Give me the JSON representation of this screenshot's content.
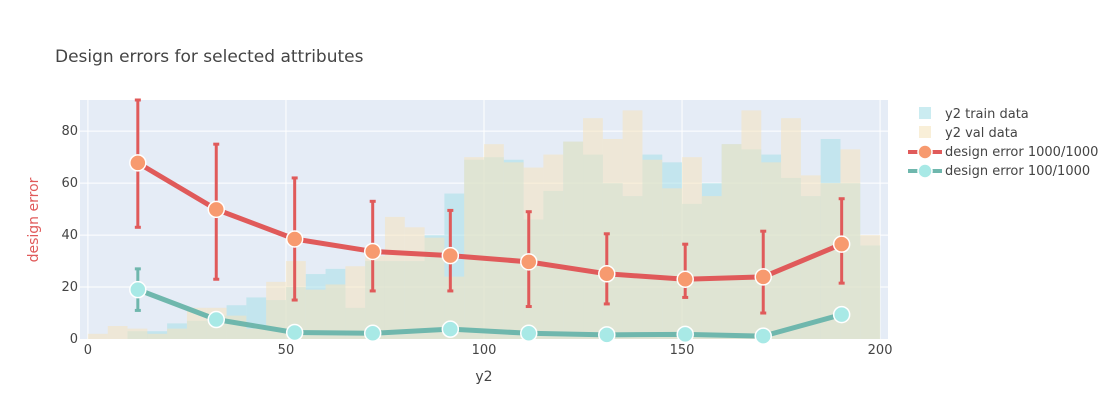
{
  "chart_data": {
    "type": "line",
    "title": "Design errors for selected attributes",
    "xlabel": "y2",
    "ylabel": "design error",
    "xlim": [
      -2,
      202
    ],
    "ylim": [
      0,
      92
    ],
    "x_ticks": [
      0,
      50,
      100,
      150,
      200
    ],
    "y_ticks": [
      0,
      20,
      40,
      60,
      80
    ],
    "grid": true,
    "legend_position": "right",
    "colors": {
      "plot_bg": "#e5ecf6",
      "train_hist": "#a8e0e8",
      "val_hist": "#f5e4be",
      "error_1000": "#e05a5a",
      "error_1000_marker": "#f79a6f",
      "error_100": "#6fb7ad",
      "error_100_marker": "#a8e9e6",
      "ylabel_color": "#e05a5a"
    },
    "histograms": [
      {
        "name": "y2 train data",
        "bin_start": 5,
        "bin_width": 5,
        "values": [
          0,
          3,
          3,
          6,
          7,
          9,
          13,
          16,
          15,
          20,
          25,
          27,
          12,
          30,
          30,
          30,
          40,
          56,
          69,
          70,
          69,
          46,
          57,
          76,
          71,
          60,
          55,
          71,
          68,
          52,
          60,
          75,
          73,
          71,
          62,
          55,
          77,
          60,
          36
        ]
      },
      {
        "name": "y2 val data",
        "bin_start": 0,
        "bin_width": 5,
        "values": [
          2,
          5,
          4,
          2,
          4,
          12,
          12,
          9,
          4,
          22,
          30,
          19,
          21,
          28,
          32,
          47,
          43,
          39,
          24,
          70,
          75,
          68,
          66,
          71,
          76,
          85,
          77,
          88,
          69,
          58,
          70,
          55,
          75,
          88,
          68,
          85,
          63,
          60,
          73,
          40
        ]
      }
    ],
    "series": [
      {
        "name": "design error 1000/1000",
        "x": [
          12.6,
          32.4,
          52.2,
          71.9,
          91.5,
          111.3,
          131.0,
          150.8,
          170.5,
          190.3
        ],
        "y": [
          67.8,
          49.9,
          38.5,
          33.7,
          32.1,
          29.7,
          25.1,
          23.0,
          23.9,
          36.5
        ],
        "error_low": [
          43.0,
          23.0,
          15.0,
          18.5,
          18.5,
          12.5,
          13.5,
          16.0,
          10.0,
          21.5
        ],
        "error_high": [
          92.0,
          75.0,
          62.0,
          53.0,
          49.5,
          49.0,
          40.5,
          36.5,
          41.5,
          54.0
        ]
      },
      {
        "name": "design error 100/1000",
        "x": [
          12.6,
          32.4,
          52.2,
          71.9,
          91.5,
          111.3,
          131.0,
          150.8,
          170.5,
          190.3
        ],
        "y": [
          19.0,
          7.5,
          2.5,
          2.2,
          3.8,
          2.2,
          1.6,
          1.8,
          1.1,
          9.4
        ],
        "error_low": [
          11.0,
          5.0,
          1.5,
          1.0,
          2.5,
          1.5,
          1.0,
          1.0,
          0.5,
          8.0
        ],
        "error_high": [
          27.0,
          10.0,
          3.5,
          3.5,
          5.0,
          3.0,
          2.2,
          2.5,
          1.8,
          11.0
        ]
      }
    ]
  }
}
